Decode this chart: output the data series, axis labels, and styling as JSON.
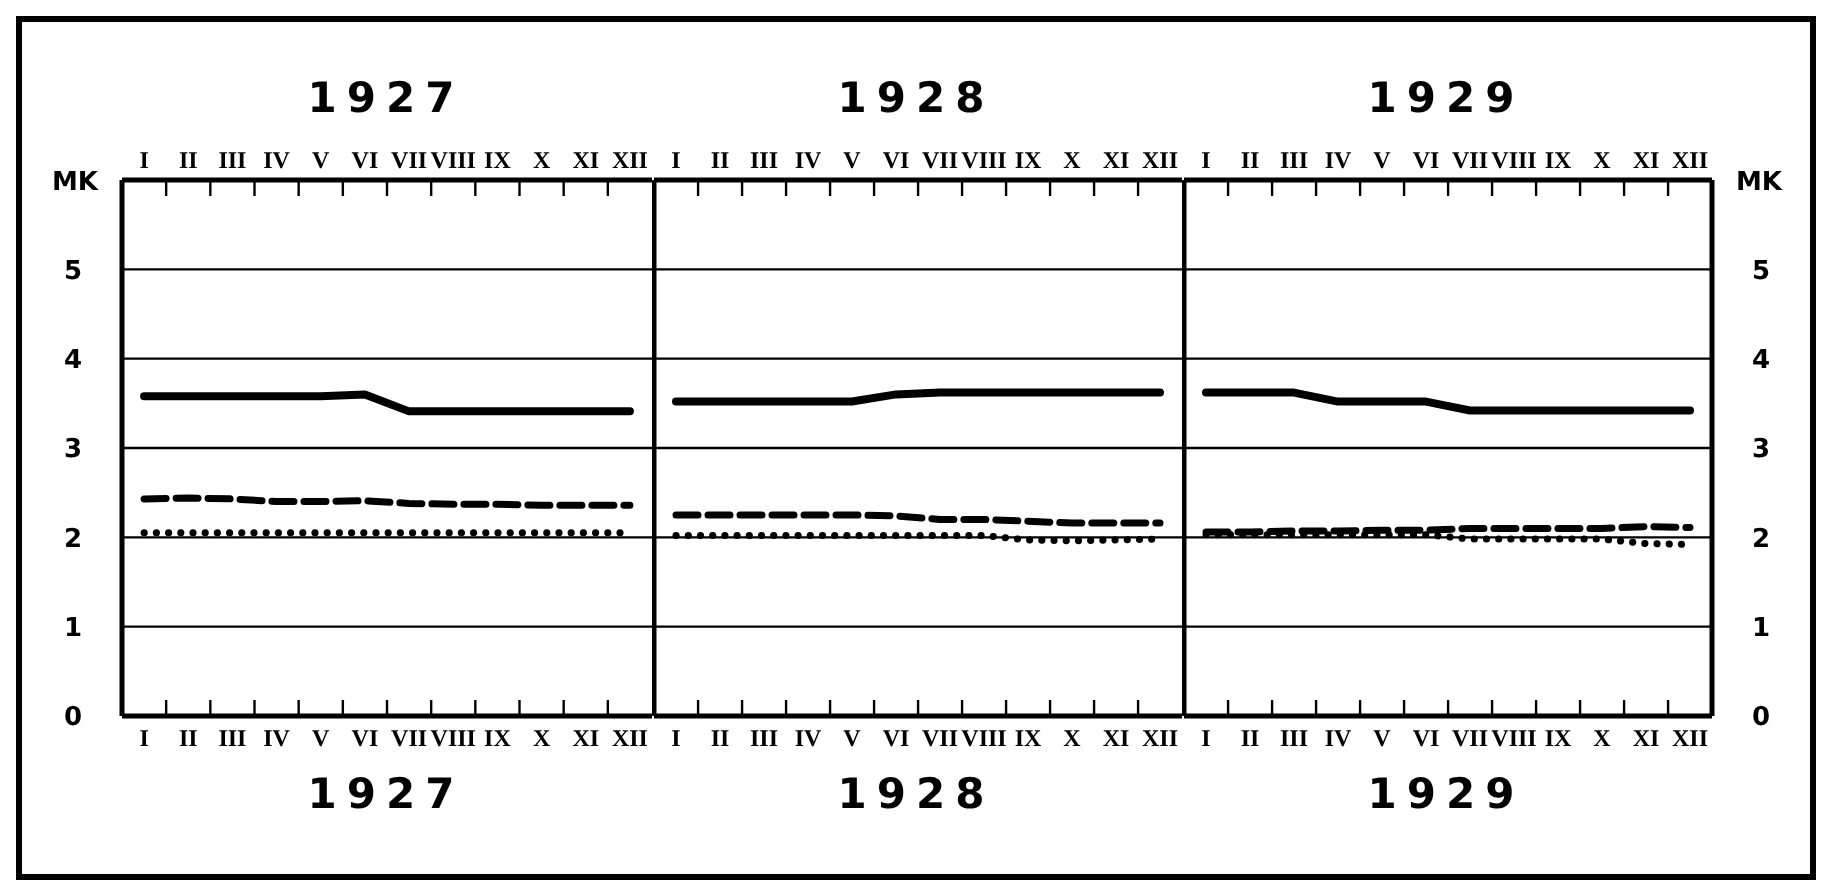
{
  "chart_data": [
    {
      "type": "line",
      "title": "1927",
      "xlabel": "1927",
      "ylabel": "MK",
      "categories": [
        "I",
        "II",
        "III",
        "IV",
        "V",
        "VI",
        "VII",
        "VIII",
        "IX",
        "X",
        "XI",
        "XII"
      ],
      "series": [
        {
          "color": "#000000",
          "line_style": "solid",
          "values": [
            3.58,
            3.58,
            3.58,
            3.58,
            3.58,
            3.6,
            3.41,
            3.41,
            3.41,
            3.41,
            3.41,
            3.41
          ]
        },
        {
          "color": "#000000",
          "line_style": "dashed",
          "values": [
            2.43,
            2.44,
            2.43,
            2.4,
            2.4,
            2.41,
            2.38,
            2.37,
            2.37,
            2.36,
            2.36,
            2.36
          ]
        },
        {
          "color": "#000000",
          "line_style": "dotted",
          "values": [
            2.05,
            2.05,
            2.05,
            2.05,
            2.05,
            2.05,
            2.05,
            2.05,
            2.05,
            2.05,
            2.05,
            2.05
          ]
        }
      ],
      "ylim": [
        0,
        6
      ],
      "yticks": [
        0,
        1,
        2,
        3,
        4,
        5
      ],
      "grid": "y"
    },
    {
      "type": "line",
      "title": "1928",
      "xlabel": "1928",
      "categories": [
        "I",
        "II",
        "III",
        "IV",
        "V",
        "VI",
        "VII",
        "VIII",
        "IX",
        "X",
        "XI",
        "XII"
      ],
      "series": [
        {
          "color": "#000000",
          "line_style": "solid",
          "values": [
            3.52,
            3.52,
            3.52,
            3.52,
            3.52,
            3.6,
            3.62,
            3.62,
            3.62,
            3.62,
            3.62,
            3.62
          ]
        },
        {
          "color": "#000000",
          "line_style": "dashed",
          "values": [
            2.25,
            2.25,
            2.25,
            2.25,
            2.25,
            2.24,
            2.2,
            2.2,
            2.18,
            2.16,
            2.16,
            2.16
          ]
        },
        {
          "color": "#000000",
          "line_style": "dotted",
          "values": [
            2.02,
            2.02,
            2.02,
            2.02,
            2.02,
            2.02,
            2.02,
            2.02,
            1.97,
            1.96,
            1.97,
            1.98
          ]
        }
      ],
      "ylim": [
        0,
        6
      ],
      "yticks": [
        0,
        1,
        2,
        3,
        4,
        5
      ],
      "grid": "y",
      "tick_labels": "x"
    },
    {
      "type": "line",
      "title": "1929",
      "xlabel": "1929",
      "y2label": "MK",
      "categories": [
        "I",
        "II",
        "III",
        "IV",
        "V",
        "VI",
        "VII",
        "VIII",
        "IX",
        "X",
        "XI",
        "XII"
      ],
      "series": [
        {
          "color": "#000000",
          "line_style": "solid",
          "axis": "y2",
          "values": [
            3.62,
            3.62,
            3.62,
            3.52,
            3.52,
            3.52,
            3.42,
            3.42,
            3.42,
            3.42,
            3.42,
            3.42
          ]
        },
        {
          "color": "#000000",
          "line_style": "dashed",
          "axis": "y2",
          "values": [
            2.06,
            2.06,
            2.07,
            2.07,
            2.08,
            2.08,
            2.1,
            2.1,
            2.1,
            2.1,
            2.12,
            2.11
          ]
        },
        {
          "color": "#000000",
          "line_style": "dotted",
          "axis": "y2",
          "values": [
            2.03,
            2.03,
            2.03,
            2.03,
            2.03,
            2.03,
            1.98,
            1.98,
            1.98,
            1.98,
            1.93,
            1.92
          ]
        }
      ],
      "y2lim": [
        0,
        6
      ],
      "y2ticks": [
        0,
        1,
        2,
        3,
        4,
        5
      ],
      "grid": "y"
    }
  ]
}
